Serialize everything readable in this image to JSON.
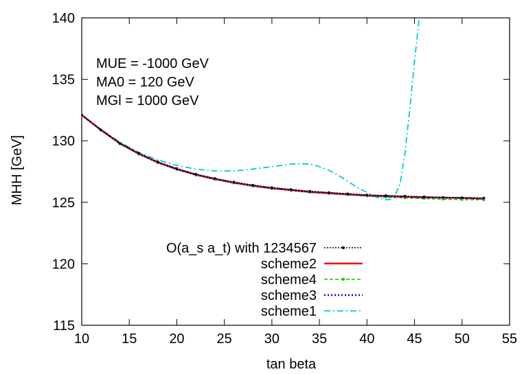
{
  "chart_data": {
    "type": "line",
    "title": "",
    "xlabel": "tan beta",
    "ylabel": "MHH [GeV]",
    "xlim": [
      10,
      55
    ],
    "ylim": [
      115,
      140
    ],
    "x_ticks": [
      10,
      15,
      20,
      25,
      30,
      35,
      40,
      45,
      50,
      55
    ],
    "y_ticks": [
      115,
      120,
      125,
      130,
      135,
      140
    ],
    "grid": false,
    "legend_position": "bottom-center",
    "annotations": [
      "MUE = -1000 GeV",
      "MA0 = 120 GeV",
      "MGl = 1000 GeV"
    ],
    "series": [
      {
        "name": "O(a_s a_t) with 1234567",
        "color": "#000000",
        "style": "dotted-points",
        "x": [
          10,
          12,
          14,
          16,
          18,
          20,
          22,
          24,
          26,
          28,
          30,
          32,
          34,
          36,
          38,
          40,
          42,
          44,
          46,
          48,
          50,
          52.3
        ],
        "y": [
          132.1,
          130.9,
          129.8,
          129.0,
          128.3,
          127.75,
          127.3,
          126.95,
          126.65,
          126.4,
          126.2,
          126.05,
          125.9,
          125.8,
          125.7,
          125.6,
          125.55,
          125.5,
          125.45,
          125.4,
          125.38,
          125.35
        ]
      },
      {
        "name": "scheme2",
        "color": "#ff0000",
        "style": "solid",
        "x": [
          10,
          12,
          14,
          16,
          18,
          20,
          22,
          24,
          26,
          28,
          30,
          32,
          34,
          36,
          38,
          40,
          42,
          44,
          46,
          48,
          50,
          52.3
        ],
        "y": [
          132.1,
          130.9,
          129.8,
          128.95,
          128.25,
          127.7,
          127.25,
          126.9,
          126.6,
          126.35,
          126.15,
          126.0,
          125.85,
          125.75,
          125.65,
          125.55,
          125.5,
          125.45,
          125.4,
          125.38,
          125.35,
          125.3
        ]
      },
      {
        "name": "scheme4",
        "color": "#00cc00",
        "style": "dashed-points",
        "x": [
          10,
          12,
          14,
          16,
          18,
          20,
          22,
          24,
          26,
          28,
          30,
          32,
          34,
          36,
          38,
          40,
          42,
          44,
          46,
          48,
          50,
          52.3
        ],
        "y": [
          132.1,
          130.85,
          129.75,
          128.9,
          128.2,
          127.65,
          127.2,
          126.85,
          126.55,
          126.3,
          126.1,
          125.95,
          125.8,
          125.7,
          125.6,
          125.5,
          125.42,
          125.35,
          125.3,
          125.25,
          125.22,
          125.2
        ]
      },
      {
        "name": "scheme3",
        "color": "#0000cc",
        "style": "dotted",
        "x": [
          10,
          12,
          14,
          16,
          18,
          20,
          22,
          24,
          26,
          28,
          30,
          32,
          34,
          36,
          38,
          40,
          42,
          44,
          46,
          48,
          50,
          52.3
        ],
        "y": [
          132.1,
          130.9,
          129.8,
          128.95,
          128.25,
          127.7,
          127.25,
          126.9,
          126.6,
          126.35,
          126.15,
          126.0,
          125.85,
          125.75,
          125.65,
          125.55,
          125.5,
          125.45,
          125.4,
          125.38,
          125.35,
          125.3
        ]
      },
      {
        "name": "scheme1",
        "color": "#00cccc",
        "style": "dash-dot",
        "x": [
          10,
          12,
          14,
          16,
          18,
          20,
          22,
          24,
          26,
          28,
          30,
          32,
          33,
          34,
          35,
          36,
          37,
          38,
          39,
          40,
          41,
          42,
          42.5,
          43,
          43.5,
          44,
          44.5,
          45,
          45.5
        ],
        "y": [
          132.1,
          130.95,
          129.9,
          129.05,
          128.45,
          128.0,
          127.7,
          127.55,
          127.55,
          127.7,
          127.9,
          128.1,
          128.15,
          128.1,
          127.9,
          127.6,
          127.2,
          126.7,
          126.2,
          125.8,
          125.4,
          125.2,
          125.25,
          125.6,
          126.6,
          129.0,
          132.5,
          136.5,
          140.0
        ]
      }
    ]
  }
}
